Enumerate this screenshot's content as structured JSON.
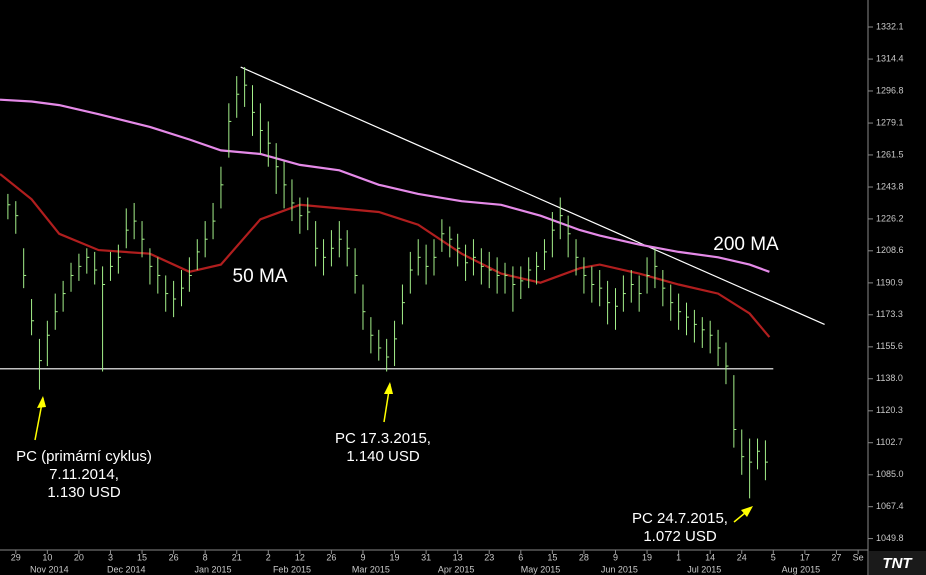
{
  "chart_data": {
    "type": "ohlc",
    "color": "#a4f08a",
    "xlim": [
      -4,
      216
    ],
    "ylim": [
      1043.5,
      1347.0
    ],
    "yticks": [
      1332.1,
      1314.4,
      1296.8,
      1279.1,
      1261.5,
      1243.8,
      1226.2,
      1208.6,
      1190.9,
      1173.3,
      1155.6,
      {
        "value": 1138.0,
        "label": "1138.0"
      },
      1120.3,
      1102.7,
      {
        "value": 1085.0,
        "label": "1085.0"
      },
      1067.4,
      1049.8
    ],
    "xticks": [
      {
        "value": 0,
        "label": "29"
      },
      {
        "value": 8,
        "label": "10"
      },
      {
        "value": 16,
        "label": "20"
      },
      {
        "value": 24,
        "label": "3"
      },
      {
        "value": 32,
        "label": "15"
      },
      {
        "value": 40,
        "label": "26"
      },
      {
        "value": 48,
        "label": "8"
      },
      {
        "value": 56,
        "label": "21"
      },
      {
        "value": 64,
        "label": "2"
      },
      {
        "value": 72,
        "label": "12"
      },
      {
        "value": 80,
        "label": "26"
      },
      {
        "value": 88,
        "label": "9"
      },
      {
        "value": 96,
        "label": "19"
      },
      {
        "value": 104,
        "label": "31"
      },
      {
        "value": 112,
        "label": "13"
      },
      {
        "value": 120,
        "label": "23"
      },
      {
        "value": 128,
        "label": "6"
      },
      {
        "value": 136,
        "label": "15"
      },
      {
        "value": 144,
        "label": "28"
      },
      {
        "value": 152,
        "label": "9"
      },
      {
        "value": 160,
        "label": "19"
      },
      {
        "value": 168,
        "label": "1"
      },
      {
        "value": 176,
        "label": "14"
      },
      {
        "value": 184,
        "label": "24"
      },
      {
        "value": 192,
        "label": "5"
      },
      {
        "value": 200,
        "label": "17"
      },
      {
        "value": 208,
        "label": "27"
      },
      {
        "value": 213.5,
        "label": "Se"
      }
    ],
    "xmonths": [
      {
        "value": 8.5,
        "label": "Nov 2014"
      },
      {
        "value": 28,
        "label": "Dec 2014"
      },
      {
        "value": 50,
        "label": "Jan 2015"
      },
      {
        "value": 70,
        "label": "Feb 2015"
      },
      {
        "value": 90,
        "label": "Mar 2015"
      },
      {
        "value": 111.6,
        "label": "Apr 2015"
      },
      {
        "value": 133,
        "label": "May 2015"
      },
      {
        "value": 153,
        "label": "Jun 2015"
      },
      {
        "value": 174.5,
        "label": "Jul 2015"
      },
      {
        "value": 199,
        "label": "Aug 2015"
      }
    ],
    "x": [
      -2,
      0,
      2,
      4,
      6,
      8,
      10,
      12,
      14,
      16,
      18,
      20,
      22,
      24,
      26,
      28,
      30,
      32,
      34,
      36,
      38,
      40,
      42,
      44,
      46,
      48,
      50,
      52,
      54,
      56,
      58,
      60,
      62,
      64,
      66,
      68,
      70,
      72,
      74,
      76,
      78,
      80,
      82,
      84,
      86,
      88,
      90,
      92,
      94,
      96,
      98,
      100,
      102,
      104,
      106,
      108,
      110,
      112,
      114,
      116,
      118,
      120,
      122,
      124,
      126,
      128,
      130,
      132,
      134,
      136,
      138,
      140,
      142,
      144,
      146,
      148,
      150,
      152,
      154,
      156,
      158,
      160,
      162,
      164,
      166,
      168,
      170,
      172,
      174,
      176,
      178,
      180,
      182,
      184,
      186,
      188,
      190
    ],
    "high": [
      1240,
      1236,
      1210,
      1182,
      1160,
      1170,
      1185,
      1192,
      1202,
      1207,
      1210,
      1208,
      1200,
      1208,
      1212,
      1232,
      1235,
      1225,
      1210,
      1205,
      1195,
      1192,
      1198,
      1205,
      1215,
      1225,
      1235,
      1255,
      1290,
      1305,
      1310,
      1300,
      1290,
      1280,
      1268,
      1258,
      1248,
      1238,
      1238,
      1225,
      1215,
      1220,
      1225,
      1220,
      1210,
      1190,
      1172,
      1165,
      1160,
      1170,
      1190,
      1208,
      1215,
      1212,
      1215,
      1226,
      1222,
      1218,
      1212,
      1215,
      1210,
      1208,
      1205,
      1202,
      1200,
      1200,
      1205,
      1208,
      1215,
      1230,
      1238,
      1228,
      1215,
      1205,
      1200,
      1198,
      1192,
      1188,
      1195,
      1198,
      1195,
      1205,
      1210,
      1198,
      1190,
      1185,
      1180,
      1176,
      1172,
      1170,
      1165,
      1158,
      1140,
      1110,
      1105,
      1105,
      1104
    ],
    "low": [
      1226,
      1218,
      1188,
      1162,
      1132,
      1145,
      1165,
      1175,
      1186,
      1192,
      1196,
      1190,
      1142,
      1192,
      1196,
      1210,
      1215,
      1205,
      1190,
      1185,
      1175,
      1172,
      1178,
      1186,
      1198,
      1205,
      1215,
      1232,
      1260,
      1282,
      1288,
      1272,
      1262,
      1255,
      1240,
      1232,
      1225,
      1218,
      1220,
      1200,
      1195,
      1200,
      1205,
      1200,
      1185,
      1165,
      1152,
      1148,
      1142,
      1145,
      1168,
      1185,
      1195,
      1190,
      1195,
      1208,
      1205,
      1200,
      1192,
      1195,
      1190,
      1188,
      1185,
      1185,
      1175,
      1182,
      1188,
      1190,
      1198,
      1205,
      1215,
      1205,
      1195,
      1185,
      1180,
      1178,
      1168,
      1165,
      1175,
      1180,
      1175,
      1185,
      1188,
      1178,
      1170,
      1165,
      1162,
      1158,
      1155,
      1152,
      1145,
      1135,
      1100,
      1085,
      1072,
      1088,
      1082
    ],
    "close": [
      1234,
      1228,
      1195,
      1170,
      1148,
      1162,
      1175,
      1185,
      1195,
      1200,
      1205,
      1198,
      1190,
      1200,
      1205,
      1220,
      1225,
      1215,
      1200,
      1195,
      1185,
      1182,
      1188,
      1195,
      1208,
      1215,
      1225,
      1245,
      1280,
      1295,
      1300,
      1285,
      1275,
      1268,
      1255,
      1245,
      1235,
      1228,
      1230,
      1210,
      1205,
      1210,
      1215,
      1210,
      1195,
      1175,
      1162,
      1155,
      1150,
      1160,
      1180,
      1198,
      1205,
      1200,
      1205,
      1218,
      1215,
      1210,
      1202,
      1205,
      1200,
      1198,
      1195,
      1195,
      1190,
      1192,
      1198,
      1200,
      1208,
      1220,
      1228,
      1218,
      1205,
      1195,
      1190,
      1188,
      1180,
      1178,
      1185,
      1190,
      1185,
      1195,
      1200,
      1188,
      1180,
      1175,
      1172,
      1168,
      1165,
      1162,
      1155,
      1145,
      1110,
      1095,
      1092,
      1098,
      1092
    ],
    "series": [
      {
        "name": "50 MA",
        "color": "#b01e1e",
        "x": [
          -4,
          4,
          11,
          21,
          34,
          44,
          52,
          62,
          72,
          82,
          92,
          102,
          113,
          123,
          133,
          143,
          148,
          158,
          168,
          178,
          186,
          191
        ],
        "values": [
          1251,
          1237,
          1218,
          1209,
          1207,
          1197,
          1201,
          1226,
          1234,
          1232,
          1230,
          1223,
          1207,
          1196,
          1191,
          1199,
          1201,
          1196,
          1190,
          1185,
          1174,
          1161
        ]
      },
      {
        "name": "200 MA",
        "color": "#e58ae8",
        "x": [
          -4,
          4,
          11,
          21,
          34,
          44,
          52,
          62,
          72,
          82,
          92,
          102,
          113,
          123,
          133,
          143,
          148,
          158,
          168,
          178,
          186,
          191
        ],
        "values": [
          1292,
          1291,
          1289,
          1284,
          1277,
          1270,
          1264,
          1262,
          1256,
          1253,
          1245,
          1240,
          1236,
          1234,
          1228,
          1220,
          1217,
          1212,
          1208,
          1205,
          1201,
          1197
        ]
      }
    ],
    "trendlines": [
      {
        "color": "#ffffff",
        "x": [
          57,
          205
        ],
        "values": [
          1310,
          1168
        ]
      },
      {
        "color": "#ffffff",
        "x": [
          -4,
          192
        ],
        "values": [
          1143.5,
          1143.5
        ]
      }
    ],
    "annotations": [
      {
        "text": [
          "PC (primární cyklus)",
          "7.11.2014,",
          "1.130 USD"
        ]
      },
      {
        "text": [
          "PC 17.3.2015,",
          "1.140 USD"
        ]
      },
      {
        "text": [
          "PC 24.7.2015,",
          "1.072 USD"
        ]
      }
    ],
    "logo": "TNT"
  }
}
